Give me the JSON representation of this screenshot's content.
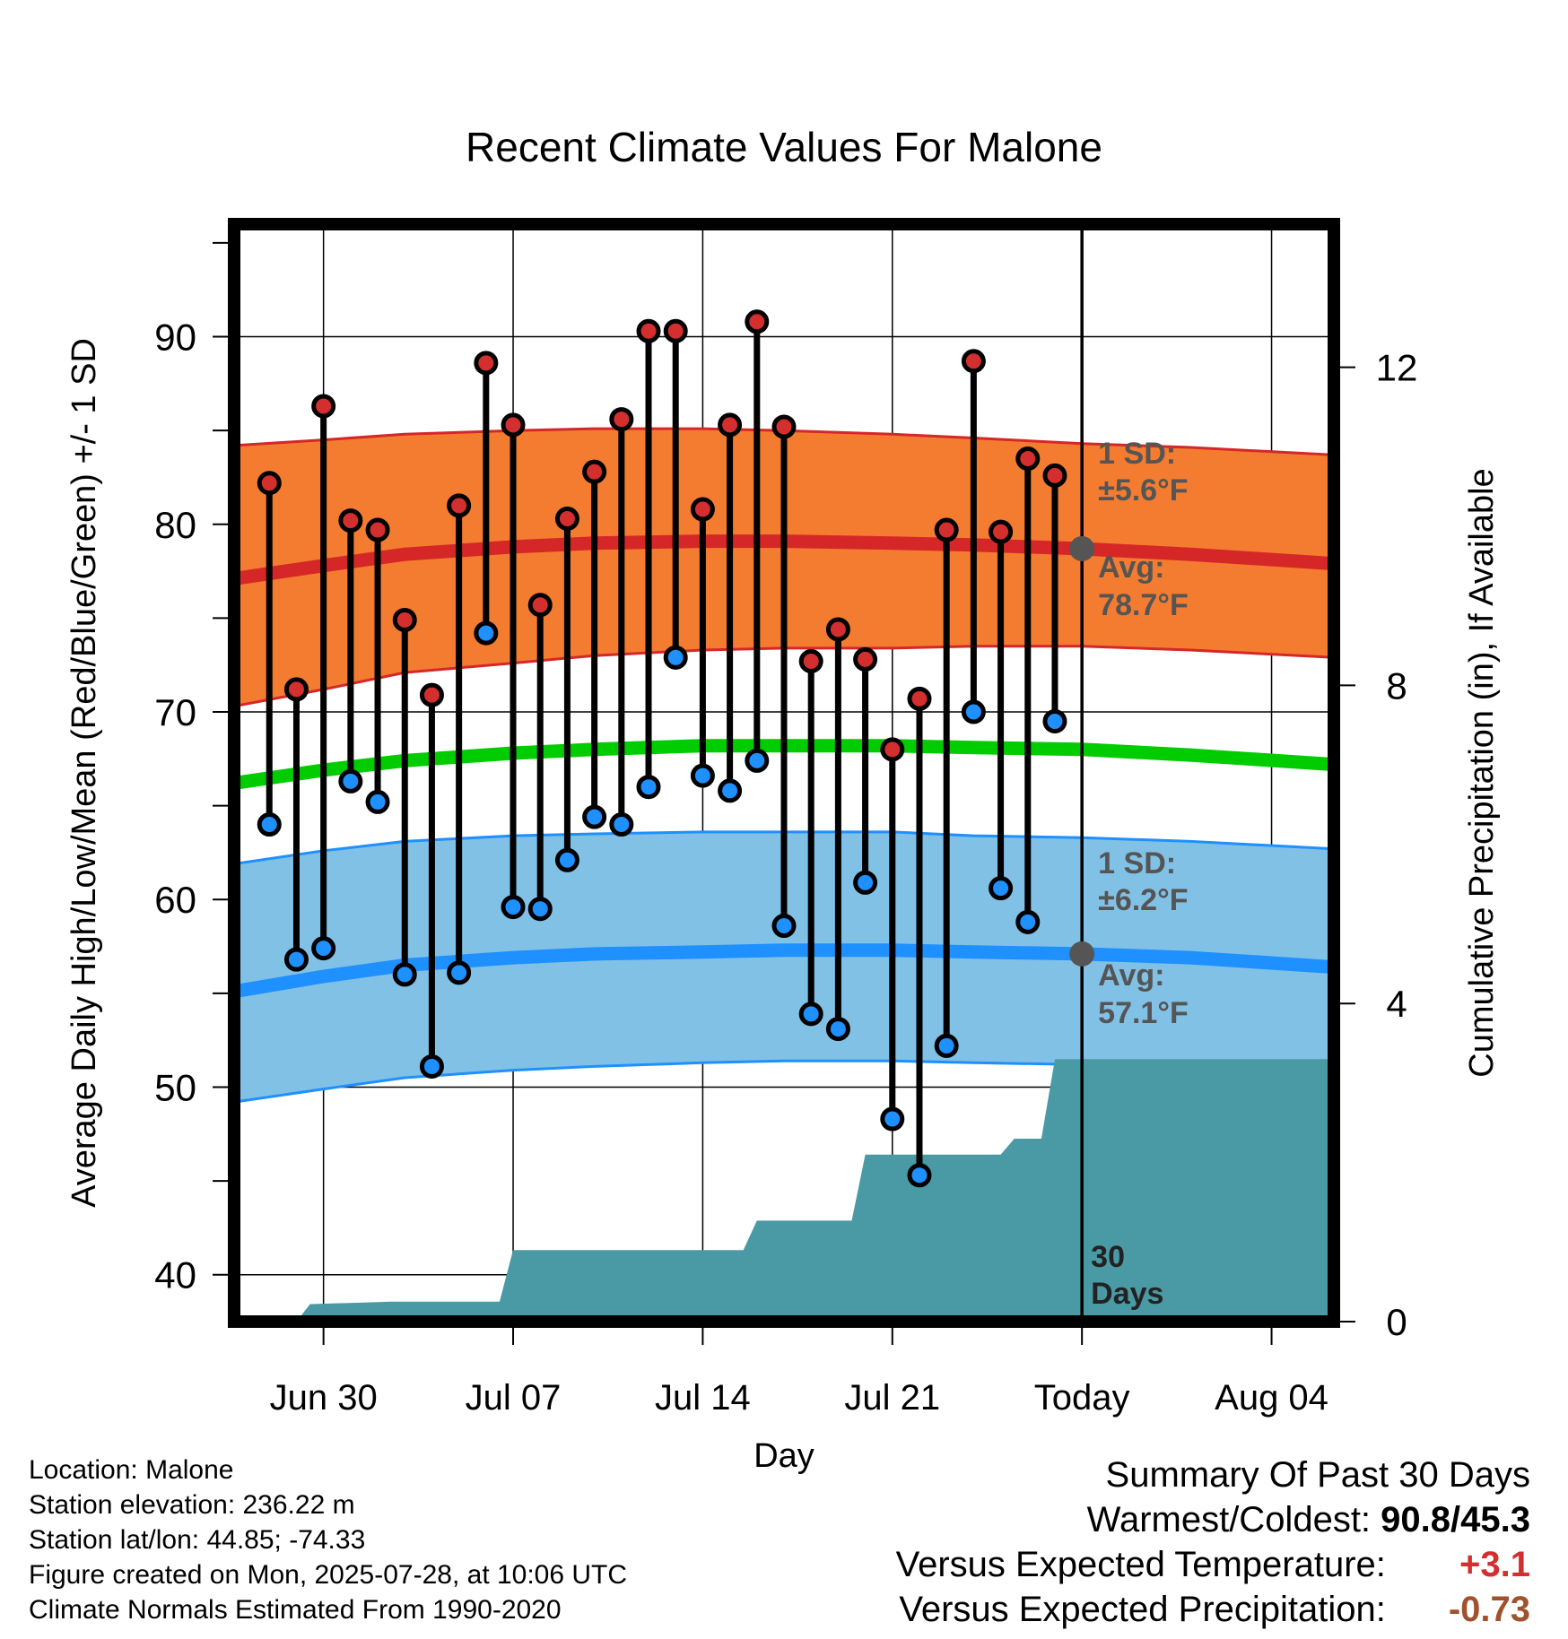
{
  "chart_data": {
    "type": "line",
    "title": "Recent Climate Values For Malone",
    "xlabel": "Day",
    "ylabel": "Average Daily High/Low/Mean (Red/Blue/Green) +/- 1 SD",
    "y2label": "Cumulative Precipitation (in), If Available",
    "ylim": [
      37.5,
      96
    ],
    "y_ticks": [
      40,
      50,
      60,
      70,
      80,
      90
    ],
    "y2lim": [
      0,
      13.8
    ],
    "y2_ticks": [
      0,
      4,
      8,
      12
    ],
    "x_ticks": [
      "Jun 30",
      "Jul 07",
      "Jul 14",
      "Jul 21",
      "Today",
      "Aug 04"
    ],
    "x_tick_day": [
      2,
      9,
      16,
      23,
      30,
      37
    ],
    "x_range_day": [
      -1.3,
      39.3
    ],
    "today_day": 30,
    "grid": true,
    "observations": {
      "day": [
        0,
        1,
        2,
        3,
        4,
        5,
        6,
        7,
        8,
        9,
        10,
        11,
        12,
        13,
        14,
        15,
        16,
        17,
        18,
        19,
        20,
        21,
        22,
        23,
        24,
        25,
        26,
        27,
        28,
        29
      ],
      "high": [
        82.2,
        71.2,
        86.3,
        80.2,
        79.7,
        74.9,
        70.9,
        81.0,
        88.6,
        85.3,
        75.7,
        80.3,
        82.8,
        85.6,
        90.3,
        90.3,
        80.8,
        85.3,
        90.8,
        85.2,
        72.7,
        74.4,
        72.8,
        68.0,
        70.7,
        79.7,
        88.7,
        79.6,
        83.5,
        82.6
      ],
      "low": [
        64.0,
        56.8,
        57.4,
        66.3,
        65.2,
        56.0,
        51.1,
        56.1,
        74.2,
        59.6,
        59.5,
        62.1,
        64.4,
        64.0,
        66.0,
        72.9,
        66.6,
        65.8,
        67.4,
        58.6,
        53.9,
        53.1,
        60.9,
        48.3,
        45.3,
        52.2,
        70.0,
        60.6,
        58.8,
        69.5
      ]
    },
    "normals": {
      "day": [
        -1.3,
        2,
        5,
        9,
        12,
        16,
        19,
        23,
        26,
        30,
        34,
        39.3
      ],
      "high_avg": [
        77.1,
        77.8,
        78.4,
        78.8,
        79.0,
        79.1,
        79.1,
        79.0,
        78.9,
        78.7,
        78.4,
        77.9
      ],
      "high_upper": [
        84.2,
        84.5,
        84.8,
        85.0,
        85.1,
        85.1,
        85.0,
        84.8,
        84.6,
        84.3,
        84.1,
        83.7
      ],
      "high_lower": [
        70.3,
        71.2,
        72.1,
        72.6,
        73.0,
        73.3,
        73.4,
        73.4,
        73.5,
        73.5,
        73.3,
        72.9
      ],
      "mean": [
        66.2,
        66.9,
        67.4,
        67.8,
        68.0,
        68.2,
        68.2,
        68.2,
        68.1,
        68.0,
        67.7,
        67.2
      ],
      "low_avg": [
        55.1,
        55.9,
        56.5,
        56.9,
        57.1,
        57.2,
        57.3,
        57.3,
        57.2,
        57.1,
        56.9,
        56.4
      ],
      "low_upper": [
        61.9,
        62.6,
        63.1,
        63.4,
        63.5,
        63.6,
        63.6,
        63.6,
        63.4,
        63.3,
        63.1,
        62.7
      ],
      "low_lower": [
        49.2,
        49.9,
        50.5,
        50.9,
        51.1,
        51.3,
        51.4,
        51.4,
        51.3,
        51.2,
        50.9,
        50.6
      ]
    },
    "precipitation": {
      "day": [
        -1.3,
        1.0,
        1.5,
        4.5,
        5.0,
        7.0,
        7.5,
        8.5,
        9.0,
        13.5,
        14.0,
        17.5,
        18.0,
        19.5,
        20.0,
        21.5,
        22.0,
        25.5,
        26.0,
        26.5,
        27.0,
        27.5,
        28.5,
        29.0,
        39.3
      ],
      "cumulative": [
        0,
        0,
        0.22,
        0.25,
        0.25,
        0.25,
        0.25,
        0.25,
        0.9,
        0.9,
        0.9,
        0.9,
        1.27,
        1.27,
        1.27,
        1.27,
        2.1,
        2.1,
        2.1,
        2.1,
        2.1,
        2.3,
        2.3,
        3.3,
        3.3
      ]
    },
    "annotations": {
      "high_sd_line1": "1 SD:",
      "high_sd_line2": "±5.6",
      "high_sd_unit": "°F",
      "high_avg_line1": "Avg:",
      "high_avg_line2": "78.7",
      "high_avg_unit": "°F",
      "low_sd_line1": "1 SD:",
      "low_sd_line2": "±6.2",
      "low_sd_unit": "°F",
      "low_avg_line1": "Avg:",
      "low_avg_line2": "57.1",
      "low_avg_unit": "°F",
      "days_line1": "30",
      "days_line2": "Days"
    },
    "colors": {
      "high_band": "#f47c30",
      "high_line": "#d62728",
      "mean_line": "#00cc00",
      "low_band": "#82c1e6",
      "low_line": "#1e90ff",
      "precip": "#4a9aa5",
      "high_marker": "#d32f2f",
      "low_marker": "#1e90ff",
      "annotation": "#555555"
    }
  },
  "info": {
    "location": "Location: Malone",
    "elevation": "Station elevation: 236.22 m",
    "latlon": "Station lat/lon: 44.85; -74.33",
    "created": "Figure created on Mon, 2025-07-28, at 10:06 UTC",
    "normals": "Climate Normals Estimated From 1990-2020"
  },
  "summary": {
    "title": "Summary Of Past 30 Days",
    "warm_cold_label": "Warmest/Coldest:",
    "warm_cold_value": "90.8/45.3",
    "temp_label": "Versus Expected Temperature:",
    "temp_value": "+3.1",
    "temp_color": "#d32f2f",
    "precip_label": "Versus Expected Precipitation:",
    "precip_value": "-0.73",
    "precip_color": "#a0522d"
  }
}
